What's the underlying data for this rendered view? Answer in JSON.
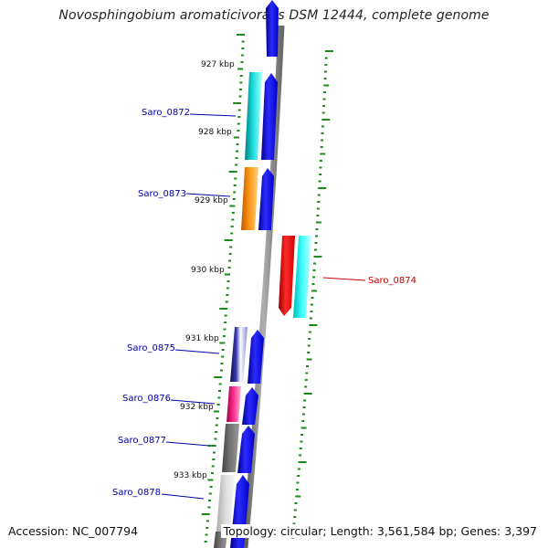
{
  "title": "Novosphingobium aromaticivorans DSM 12444, complete genome",
  "accession": "Accession: NC_007794",
  "stats": "Topology: circular; Length: 3,561,584 bp; Genes: 3,397",
  "kbp_labels": [
    "927 kbp",
    "928 kbp",
    "929 kbp",
    "930 kbp",
    "931 kbp",
    "932 kbp",
    "933 kbp"
  ],
  "genes": [
    {
      "name": "Saro_0872",
      "strand": "left",
      "domain_color": "#00c8c8",
      "cds_color": "#0000ee",
      "link_color": "#0000aa"
    },
    {
      "name": "Saro_0873",
      "strand": "left",
      "domain_color": "#ff8800",
      "cds_color": "#0000ee",
      "link_color": "#0000aa"
    },
    {
      "name": "Saro_0874",
      "strand": "right",
      "domain_color": "#00e8e8",
      "cds_color": "#ee0000",
      "link_color": "#cc0000"
    },
    {
      "name": "Saro_0875",
      "strand": "left",
      "domain_color": "#1a1a8a",
      "cds_color": "#0000ee",
      "link_color": "#0000aa"
    },
    {
      "name": "Saro_0876",
      "strand": "left",
      "domain_color": "#e0207a",
      "cds_color": "#0000ee",
      "link_color": "#0000aa"
    },
    {
      "name": "Saro_0877",
      "strand": "left",
      "domain_color": "#555555",
      "cds_color": "#0000ee",
      "link_color": "#0000aa"
    },
    {
      "name": "Saro_0878",
      "strand": "left",
      "domain_color": "#bbbbbb",
      "cds_color": "#0000ee",
      "link_color": "#0000aa"
    }
  ],
  "colors": {
    "backbone": "#888888",
    "tick_green": "#1a8a1a",
    "forward_cds": "#0000ee",
    "reverse_cds": "#ee0000"
  }
}
